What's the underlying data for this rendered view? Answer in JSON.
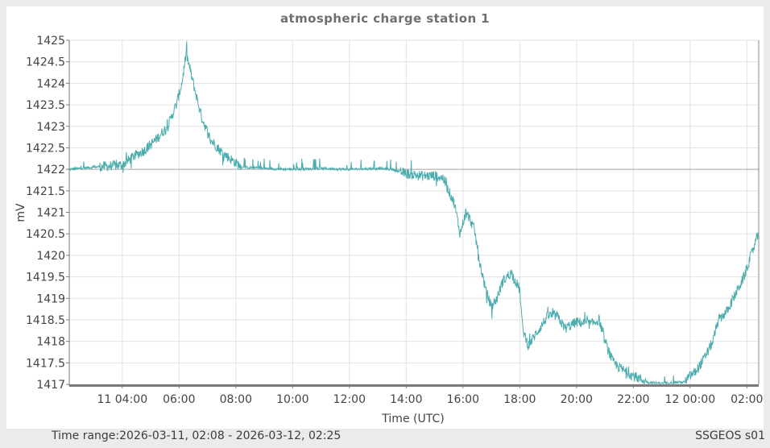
{
  "chart_data": {
    "type": "line",
    "title": "atmospheric charge station 1",
    "xlabel": "Time (UTC)",
    "ylabel": "mV",
    "ylim": [
      1417,
      1425
    ],
    "yticks": [
      1417,
      1417.5,
      1418,
      1418.5,
      1419,
      1419.5,
      1420,
      1420.5,
      1421,
      1421.5,
      1422,
      1422.5,
      1423,
      1423.5,
      1424,
      1424.5,
      1425
    ],
    "ytick_labels": [
      "1417",
      "1417.5",
      "1418",
      "1418.5",
      "1419",
      "1419.5",
      "1420",
      "1420.5",
      "1421",
      "1421.5",
      "1422",
      "1422.5",
      "1423",
      "1423.5",
      "1424",
      "1424.5",
      "1425"
    ],
    "xrange_hours": [
      2.133,
      26.417
    ],
    "xticks_hours": [
      4,
      6,
      8,
      10,
      12,
      14,
      16,
      18,
      20,
      22,
      24,
      26
    ],
    "xtick_labels": [
      "11 04:00",
      "06:00",
      "08:00",
      "10:00",
      "12:00",
      "14:00",
      "16:00",
      "18:00",
      "20:00",
      "22:00",
      "12 00:00",
      "02:00"
    ],
    "reference_line": 1422,
    "grid": true,
    "legend": null,
    "series": [
      {
        "name": "atmospheric charge station 1",
        "color": "#4aacac",
        "x_hours": [
          2.13,
          3.0,
          4.0,
          4.4,
          4.8,
          5.2,
          5.6,
          5.9,
          6.1,
          6.25,
          6.5,
          6.8,
          7.1,
          7.5,
          7.8,
          8.2,
          9.0,
          10.0,
          11.0,
          12.0,
          13.0,
          13.5,
          14.0,
          14.5,
          15.0,
          15.3,
          15.5,
          15.7,
          15.9,
          16.1,
          16.2,
          16.4,
          16.6,
          16.8,
          17.0,
          17.2,
          17.4,
          17.7,
          18.0,
          18.1,
          18.3,
          18.6,
          19.0,
          19.3,
          19.6,
          20.0,
          20.5,
          20.8,
          21.0,
          21.3,
          21.6,
          22.0,
          22.5,
          23.0,
          23.5,
          23.8,
          24.0,
          24.2,
          24.5,
          24.8,
          25.0,
          25.3,
          25.6,
          25.9,
          26.1,
          26.3,
          26.4
        ],
        "values": [
          1422.0,
          1422.05,
          1422.1,
          1422.3,
          1422.45,
          1422.7,
          1423.0,
          1423.5,
          1424.0,
          1424.7,
          1424.0,
          1423.2,
          1422.7,
          1422.4,
          1422.25,
          1422.05,
          1422.02,
          1422.0,
          1422.02,
          1422.0,
          1422.02,
          1422.0,
          1421.9,
          1421.85,
          1421.85,
          1421.8,
          1421.5,
          1421.2,
          1420.5,
          1421.0,
          1420.9,
          1420.6,
          1419.8,
          1419.2,
          1418.8,
          1419.0,
          1419.4,
          1419.6,
          1419.2,
          1418.3,
          1417.9,
          1418.2,
          1418.6,
          1418.6,
          1418.3,
          1418.45,
          1418.4,
          1418.5,
          1418.0,
          1417.5,
          1417.35,
          1417.2,
          1417.05,
          1417.02,
          1417.05,
          1417.05,
          1417.2,
          1417.3,
          1417.6,
          1418.0,
          1418.5,
          1418.7,
          1419.1,
          1419.5,
          1419.9,
          1420.3,
          1420.5
        ],
        "noise_amplitude": 0.12
      }
    ]
  },
  "footer": {
    "time_range_label": "Time range:2026-03-11, 02:08 - 2026-03-12, 02:25",
    "source_label": "SSGEOS s01"
  }
}
